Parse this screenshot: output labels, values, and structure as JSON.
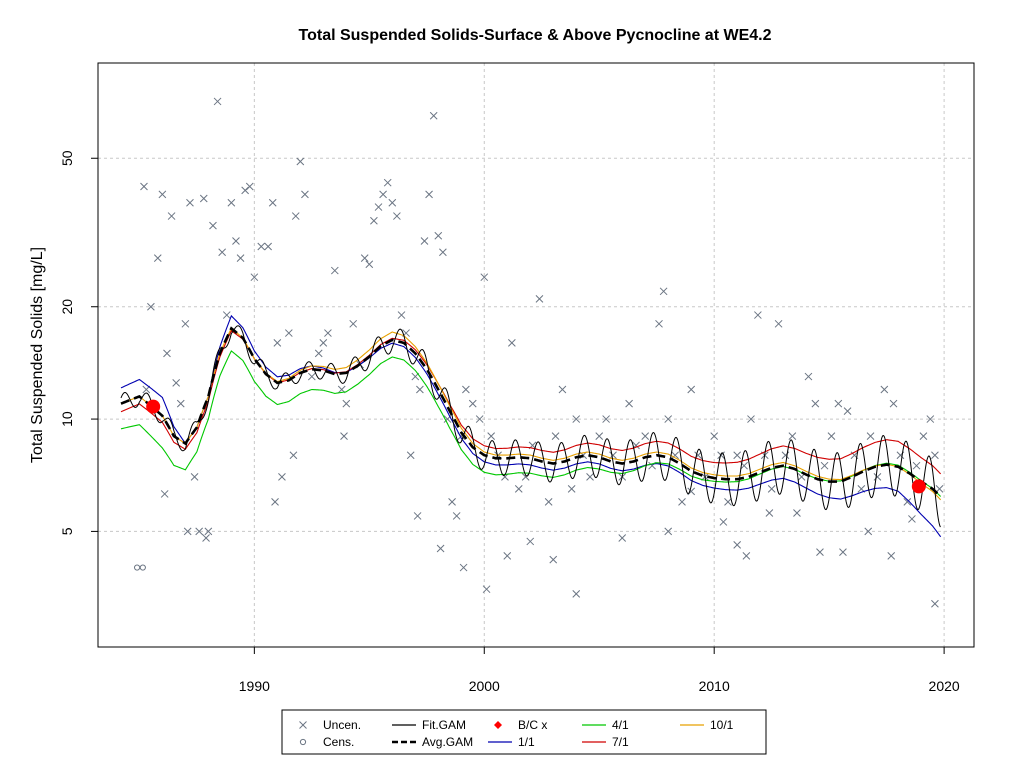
{
  "chart_data": {
    "type": "scatter",
    "title": "Total Suspended Solids-Surface & Above Pycnocline at WE4.2",
    "xlabel": "",
    "ylabel": "Total Suspended Solids [mg/L]",
    "x_range": [
      1983.2,
      2021.3
    ],
    "y_range": [
      2.45,
      90
    ],
    "y_scale": "log",
    "x_ticks": [
      1990,
      2000,
      2010,
      2020
    ],
    "y_ticks": [
      5,
      10,
      20,
      50
    ],
    "grid": true,
    "legend_position": "bottom",
    "legend": [
      {
        "label": "Uncen.",
        "kind": "x-marker",
        "color": "#6b7583"
      },
      {
        "label": "Cens.",
        "kind": "o-marker",
        "color": "#6b7583"
      },
      {
        "label": "Fit.GAM",
        "kind": "line",
        "color": "#000000"
      },
      {
        "label": "Avg.GAM",
        "kind": "dashed-line",
        "color": "#000000"
      },
      {
        "label": "B/C x",
        "kind": "diamond-marker",
        "color": "#ff0000"
      },
      {
        "label": "1/1",
        "kind": "line",
        "color": "#0000b0"
      },
      {
        "label": "4/1",
        "kind": "line",
        "color": "#00c800"
      },
      {
        "label": "7/1",
        "kind": "line",
        "color": "#d00000"
      },
      {
        "label": "10/1",
        "kind": "line",
        "color": "#e8a000"
      }
    ],
    "avg_gam": [
      [
        1984.2,
        11.0
      ],
      [
        1985.0,
        11.5
      ],
      [
        1986.0,
        10.2
      ],
      [
        1986.5,
        9.0
      ],
      [
        1987.0,
        8.6
      ],
      [
        1987.5,
        9.5
      ],
      [
        1988.0,
        11.5
      ],
      [
        1988.5,
        15.0
      ],
      [
        1989.0,
        17.5
      ],
      [
        1989.5,
        16.5
      ],
      [
        1990.0,
        14.5
      ],
      [
        1990.5,
        13.2
      ],
      [
        1991.0,
        12.5
      ],
      [
        1991.5,
        12.7
      ],
      [
        1992.0,
        13.3
      ],
      [
        1992.5,
        13.6
      ],
      [
        1993.0,
        13.5
      ],
      [
        1993.5,
        13.2
      ],
      [
        1994.0,
        13.3
      ],
      [
        1994.5,
        13.9
      ],
      [
        1995.0,
        14.7
      ],
      [
        1995.5,
        15.7
      ],
      [
        1996.0,
        16.3
      ],
      [
        1996.5,
        16.0
      ],
      [
        1997.0,
        15.0
      ],
      [
        1997.5,
        13.6
      ],
      [
        1998.0,
        12.0
      ],
      [
        1998.5,
        10.5
      ],
      [
        1999.0,
        9.2
      ],
      [
        1999.5,
        8.4
      ],
      [
        2000.0,
        8.0
      ],
      [
        2000.5,
        7.85
      ],
      [
        2001.0,
        7.85
      ],
      [
        2001.5,
        7.9
      ],
      [
        2002.0,
        7.85
      ],
      [
        2002.5,
        7.7
      ],
      [
        2003.0,
        7.6
      ],
      [
        2003.5,
        7.7
      ],
      [
        2004.0,
        7.9
      ],
      [
        2004.5,
        8.0
      ],
      [
        2005.0,
        7.9
      ],
      [
        2005.5,
        7.7
      ],
      [
        2006.0,
        7.6
      ],
      [
        2006.5,
        7.7
      ],
      [
        2007.0,
        7.9
      ],
      [
        2007.5,
        8.0
      ],
      [
        2008.0,
        7.9
      ],
      [
        2008.5,
        7.6
      ],
      [
        2009.0,
        7.25
      ],
      [
        2009.5,
        7.05
      ],
      [
        2010.0,
        6.95
      ],
      [
        2010.5,
        6.9
      ],
      [
        2011.0,
        6.9
      ],
      [
        2011.5,
        7.0
      ],
      [
        2012.0,
        7.2
      ],
      [
        2012.5,
        7.4
      ],
      [
        2013.0,
        7.5
      ],
      [
        2013.5,
        7.35
      ],
      [
        2014.0,
        7.1
      ],
      [
        2014.5,
        6.9
      ],
      [
        2015.0,
        6.8
      ],
      [
        2015.5,
        6.8
      ],
      [
        2016.0,
        7.0
      ],
      [
        2016.5,
        7.25
      ],
      [
        2017.0,
        7.45
      ],
      [
        2017.5,
        7.55
      ],
      [
        2018.0,
        7.45
      ],
      [
        2018.5,
        7.15
      ],
      [
        2019.0,
        6.8
      ],
      [
        2019.5,
        6.5
      ],
      [
        2019.85,
        6.2
      ]
    ],
    "series_offsets": {
      "1/1": [
        [
          1984,
          1.1
        ],
        [
          1986,
          1.12
        ],
        [
          1987,
          1.0
        ],
        [
          1988,
          1.0
        ],
        [
          1989,
          1.08
        ],
        [
          1990,
          1.05
        ],
        [
          1996,
          0.98
        ],
        [
          2000,
          0.96
        ],
        [
          2005,
          0.96
        ],
        [
          2010,
          0.94
        ],
        [
          2014,
          0.92
        ],
        [
          2018,
          0.86
        ],
        [
          2019.85,
          0.78
        ]
      ],
      "4/1": [
        [
          1984,
          0.86
        ],
        [
          1986,
          0.82
        ],
        [
          1987,
          0.85
        ],
        [
          1988,
          0.87
        ],
        [
          1989,
          0.87
        ],
        [
          1990,
          0.87
        ],
        [
          1996,
          0.9
        ],
        [
          2000,
          0.9
        ],
        [
          2005,
          0.93
        ],
        [
          2010,
          0.98
        ],
        [
          2014,
          1.0
        ],
        [
          2018,
          1.01
        ],
        [
          2019.85,
          1.0
        ]
      ],
      "7/1": [
        [
          1984,
          0.95
        ],
        [
          1986,
          0.96
        ],
        [
          1988,
          0.97
        ],
        [
          1990,
          1.0
        ],
        [
          1996,
          1.01
        ],
        [
          2000,
          1.06
        ],
        [
          2005,
          1.08
        ],
        [
          2010,
          1.1
        ],
        [
          2014,
          1.14
        ],
        [
          2018,
          1.17
        ],
        [
          2019.85,
          1.15
        ]
      ],
      "10/1": [
        [
          1984,
          1.0
        ],
        [
          1988,
          1.0
        ],
        [
          1990,
          1.0
        ],
        [
          1996,
          1.05
        ],
        [
          2000,
          1.02
        ],
        [
          2005,
          1.02
        ],
        [
          2010,
          1.02
        ],
        [
          2014,
          1.02
        ],
        [
          2018,
          1.0
        ],
        [
          2019.85,
          0.98
        ]
      ]
    },
    "fit_gam_seasonal_amplitude": [
      [
        1984,
        0.06
      ],
      [
        1992,
        0.05
      ],
      [
        1998,
        0.09
      ],
      [
        2005,
        0.13
      ],
      [
        2012,
        0.17
      ],
      [
        2019.85,
        0.19
      ]
    ],
    "bc_points": [
      {
        "x": 1985.6,
        "y": 10.8
      },
      {
        "x": 2018.9,
        "y": 6.6
      }
    ],
    "uncensored": [
      [
        1985.2,
        42
      ],
      [
        1985.3,
        12
      ],
      [
        1985.5,
        20
      ],
      [
        1985.8,
        27
      ],
      [
        1986.0,
        40
      ],
      [
        1986.2,
        15
      ],
      [
        1986.4,
        35
      ],
      [
        1986.6,
        12.5
      ],
      [
        1986.8,
        11
      ],
      [
        1987.0,
        18
      ],
      [
        1987.2,
        38
      ],
      [
        1987.4,
        7
      ],
      [
        1987.6,
        5
      ],
      [
        1987.8,
        39
      ],
      [
        1988.0,
        5
      ],
      [
        1988.2,
        33
      ],
      [
        1988.4,
        71
      ],
      [
        1988.6,
        28
      ],
      [
        1988.8,
        19
      ],
      [
        1989.0,
        38
      ],
      [
        1989.2,
        30
      ],
      [
        1989.4,
        27
      ],
      [
        1989.6,
        41
      ],
      [
        1989.8,
        42
      ],
      [
        1990.0,
        24
      ],
      [
        1990.3,
        29
      ],
      [
        1990.6,
        29
      ],
      [
        1990.8,
        38
      ],
      [
        1991.0,
        16
      ],
      [
        1991.2,
        7
      ],
      [
        1991.5,
        17
      ],
      [
        1991.8,
        35
      ],
      [
        1992.0,
        49
      ],
      [
        1992.2,
        40
      ],
      [
        1992.5,
        13
      ],
      [
        1992.8,
        15
      ],
      [
        1993.0,
        16
      ],
      [
        1993.2,
        17
      ],
      [
        1993.5,
        25
      ],
      [
        1993.8,
        12
      ],
      [
        1994.0,
        11
      ],
      [
        1994.3,
        18
      ],
      [
        1994.6,
        14
      ],
      [
        1994.8,
        27
      ],
      [
        1995.0,
        26
      ],
      [
        1995.2,
        34
      ],
      [
        1995.4,
        37
      ],
      [
        1995.6,
        40
      ],
      [
        1995.8,
        43
      ],
      [
        1996.0,
        38
      ],
      [
        1996.2,
        35
      ],
      [
        1996.4,
        19
      ],
      [
        1996.6,
        17
      ],
      [
        1996.8,
        8
      ],
      [
        1997.0,
        13
      ],
      [
        1997.2,
        12
      ],
      [
        1997.4,
        30
      ],
      [
        1997.6,
        40
      ],
      [
        1997.8,
        65
      ],
      [
        1998.0,
        31
      ],
      [
        1998.2,
        28
      ],
      [
        1998.4,
        10
      ],
      [
        1998.6,
        6
      ],
      [
        1998.8,
        5.5
      ],
      [
        1999.0,
        9
      ],
      [
        1999.2,
        12
      ],
      [
        1999.5,
        11
      ],
      [
        1999.8,
        10
      ],
      [
        2000.0,
        24
      ],
      [
        2000.3,
        9
      ],
      [
        2000.6,
        8
      ],
      [
        2000.9,
        7
      ],
      [
        2001.2,
        16
      ],
      [
        2001.5,
        6.5
      ],
      [
        2001.8,
        7
      ],
      [
        2002.1,
        8.5
      ],
      [
        2002.4,
        21
      ],
      [
        2002.8,
        6
      ],
      [
        2003.1,
        9
      ],
      [
        2003.4,
        12
      ],
      [
        2003.8,
        6.5
      ],
      [
        2004.0,
        10
      ],
      [
        2004.3,
        8
      ],
      [
        2004.6,
        7
      ],
      [
        2005.0,
        9
      ],
      [
        2005.3,
        10
      ],
      [
        2005.6,
        8
      ],
      [
        2006.0,
        7
      ],
      [
        2006.3,
        11
      ],
      [
        2006.6,
        8.5
      ],
      [
        2007.0,
        9
      ],
      [
        2007.3,
        7.5
      ],
      [
        2007.6,
        18
      ],
      [
        2007.8,
        22
      ],
      [
        2008.0,
        10
      ],
      [
        2008.3,
        8
      ],
      [
        2008.6,
        6
      ],
      [
        2009.0,
        12
      ],
      [
        2009.3,
        8
      ],
      [
        2009.6,
        7
      ],
      [
        2010.0,
        9
      ],
      [
        2010.3,
        8
      ],
      [
        2010.6,
        6
      ],
      [
        2011.0,
        8
      ],
      [
        2011.3,
        7.5
      ],
      [
        2011.6,
        10
      ],
      [
        2011.9,
        19
      ],
      [
        2012.2,
        8
      ],
      [
        2012.5,
        6.5
      ],
      [
        2012.8,
        18
      ],
      [
        2013.1,
        8
      ],
      [
        2013.4,
        9
      ],
      [
        2013.8,
        7
      ],
      [
        2014.1,
        13
      ],
      [
        2014.4,
        11
      ],
      [
        2014.8,
        7.5
      ],
      [
        2015.1,
        9
      ],
      [
        2015.4,
        11
      ],
      [
        2015.8,
        10.5
      ],
      [
        2016.1,
        8
      ],
      [
        2016.4,
        6.5
      ],
      [
        2016.8,
        9
      ],
      [
        2017.1,
        7
      ],
      [
        2017.4,
        12
      ],
      [
        2017.8,
        11
      ],
      [
        2018.1,
        8
      ],
      [
        2018.4,
        6
      ],
      [
        2018.8,
        7.5
      ],
      [
        2019.1,
        9
      ],
      [
        2019.4,
        10
      ],
      [
        2019.6,
        8
      ],
      [
        2019.8,
        6.5
      ],
      [
        1986.1,
        6.3
      ],
      [
        1987.1,
        5.0
      ],
      [
        1987.9,
        4.8
      ],
      [
        1990.9,
        6
      ],
      [
        1991.7,
        8
      ],
      [
        1993.9,
        9
      ],
      [
        1997.1,
        5.5
      ],
      [
        1998.1,
        4.5
      ],
      [
        1999.1,
        4.0
      ],
      [
        2000.1,
        3.5
      ],
      [
        2001.0,
        4.3
      ],
      [
        2002.0,
        4.7
      ],
      [
        2003.0,
        4.2
      ],
      [
        2004.0,
        3.4
      ],
      [
        2006.0,
        4.8
      ],
      [
        2008.0,
        5.0
      ],
      [
        2009.0,
        6.4
      ],
      [
        2010.4,
        5.3
      ],
      [
        2011.0,
        4.6
      ],
      [
        2011.4,
        4.3
      ],
      [
        2012.4,
        5.6
      ],
      [
        2013.6,
        5.6
      ],
      [
        2014.6,
        4.4
      ],
      [
        2015.6,
        4.4
      ],
      [
        2016.7,
        5.0
      ],
      [
        2017.7,
        4.3
      ],
      [
        2018.6,
        5.4
      ],
      [
        2019.6,
        3.2
      ]
    ],
    "censored": [
      [
        1984.9,
        4.0
      ],
      [
        1985.15,
        4.0
      ]
    ]
  }
}
